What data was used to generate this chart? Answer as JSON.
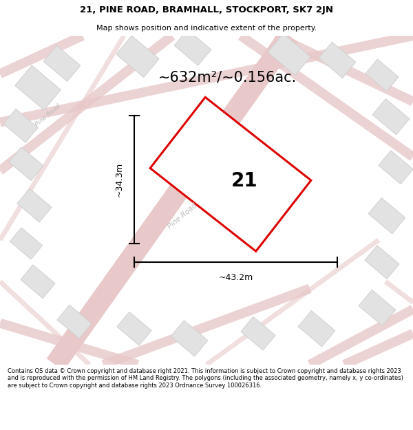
{
  "title": "21, PINE ROAD, BRAMHALL, STOCKPORT, SK7 2JN",
  "subtitle": "Map shows position and indicative extent of the property.",
  "footer": "Contains OS data © Crown copyright and database right 2021. This information is subject to Crown copyright and database rights 2023 and is reproduced with the permission of HM Land Registry. The polygons (including the associated geometry, namely x, y co-ordinates) are subject to Crown copyright and database rights 2023 Ordnance Survey 100026316.",
  "area_label": "~632m²/~0.156ac.",
  "property_number": "21",
  "width_label": "~43.2m",
  "height_label": "~34.3m",
  "map_bg_color": "#f5eeee",
  "road_color": "#e8c8c8",
  "building_color": "#e2e2e2",
  "building_outline": "#d0d0d0",
  "property_fill": "#ffffff",
  "property_outline": "#dd0000",
  "road_label_color": "#bbbbbb",
  "title_color": "#000000",
  "fig_width": 6.0,
  "fig_height": 6.25
}
